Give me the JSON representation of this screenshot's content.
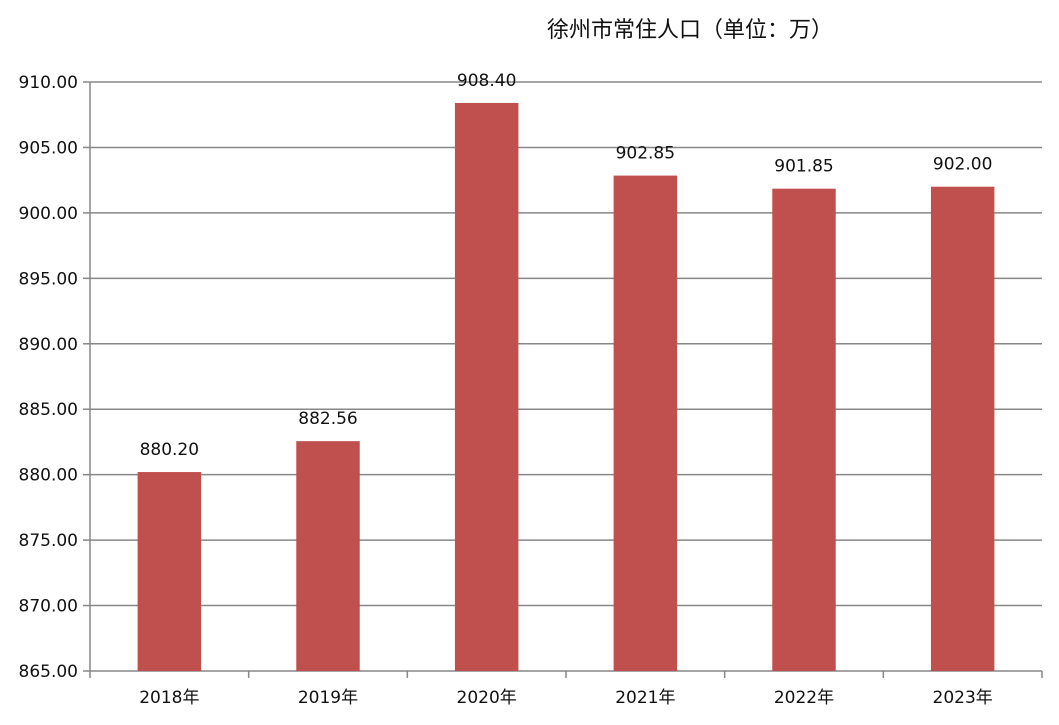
{
  "chart_data": {
    "type": "bar",
    "title": "徐州市常住人口（单位：万）",
    "xlabel": "",
    "ylabel": "",
    "categories": [
      "2018年",
      "2019年",
      "2020年",
      "2021年",
      "2022年",
      "2023年"
    ],
    "series": [
      {
        "values": [
          880.2,
          882.56,
          908.4,
          902.85,
          901.85,
          902.0
        ],
        "color": "#c0504d"
      }
    ],
    "data_labels": [
      "880.20",
      "882.56",
      "908.40",
      "902.85",
      "901.85",
      "902.00"
    ],
    "ylim": [
      865,
      910
    ],
    "yticks": [
      "865.00",
      "870.00",
      "875.00",
      "880.00",
      "885.00",
      "890.00",
      "895.00",
      "900.00",
      "905.00",
      "910.00"
    ],
    "grid": "horizontal",
    "legend": "none"
  }
}
